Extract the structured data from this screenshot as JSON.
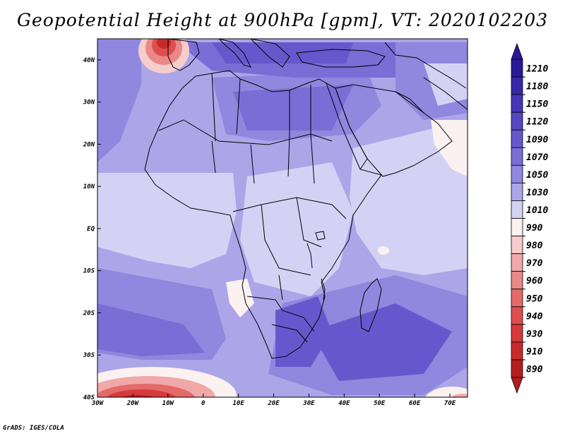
{
  "title": "Geopotential Height at 900hPa [gpm], VT: 2020102203",
  "credit": "GrADS: IGES/COLA",
  "map": {
    "variable": "Geopotential Height",
    "level": "900hPa",
    "units": "gpm",
    "valid_time": "2020102203",
    "lon_range": [
      -30,
      75
    ],
    "lat_range": [
      -40,
      45
    ],
    "lon_ticks": [
      {
        "value": -30,
        "label": "30W"
      },
      {
        "value": -20,
        "label": "20W"
      },
      {
        "value": -10,
        "label": "10W"
      },
      {
        "value": 0,
        "label": "0"
      },
      {
        "value": 10,
        "label": "10E"
      },
      {
        "value": 20,
        "label": "20E"
      },
      {
        "value": 30,
        "label": "30E"
      },
      {
        "value": 40,
        "label": "40E"
      },
      {
        "value": 50,
        "label": "50E"
      },
      {
        "value": 60,
        "label": "60E"
      },
      {
        "value": 70,
        "label": "70E"
      }
    ],
    "lat_ticks": [
      {
        "value": 40,
        "label": "40N"
      },
      {
        "value": 30,
        "label": "30N"
      },
      {
        "value": 20,
        "label": "20N"
      },
      {
        "value": 10,
        "label": "10N"
      },
      {
        "value": 0,
        "label": "EQ"
      },
      {
        "value": -10,
        "label": "10S"
      },
      {
        "value": -20,
        "label": "20S"
      },
      {
        "value": -30,
        "label": "30S"
      },
      {
        "value": -40,
        "label": "40S"
      }
    ]
  },
  "colorbar": {
    "levels": [
      {
        "label": "1210",
        "color": "#2a1a9a"
      },
      {
        "label": "1180",
        "color": "#3828a8"
      },
      {
        "label": "1150",
        "color": "#4636b6"
      },
      {
        "label": "1120",
        "color": "#5546c2"
      },
      {
        "label": "1090",
        "color": "#6658cc"
      },
      {
        "label": "1070",
        "color": "#7a6dd6"
      },
      {
        "label": "1050",
        "color": "#9087de"
      },
      {
        "label": "1030",
        "color": "#aca5e8"
      },
      {
        "label": "1010",
        "color": "#d4d2f4"
      },
      {
        "label": "990",
        "color": "#fbf1f1"
      },
      {
        "label": "980",
        "color": "#f6cccc"
      },
      {
        "label": "970",
        "color": "#f0a8a8"
      },
      {
        "label": "960",
        "color": "#ea8888"
      },
      {
        "label": "950",
        "color": "#e46a6a"
      },
      {
        "label": "940",
        "color": "#de4e4e"
      },
      {
        "label": "930",
        "color": "#d63a3a"
      },
      {
        "label": "910",
        "color": "#c82a2a"
      },
      {
        "label": "890",
        "color": "#b21e1e"
      }
    ],
    "top_color": "#2a1a9a",
    "bottom_color": "#b21e1e"
  }
}
